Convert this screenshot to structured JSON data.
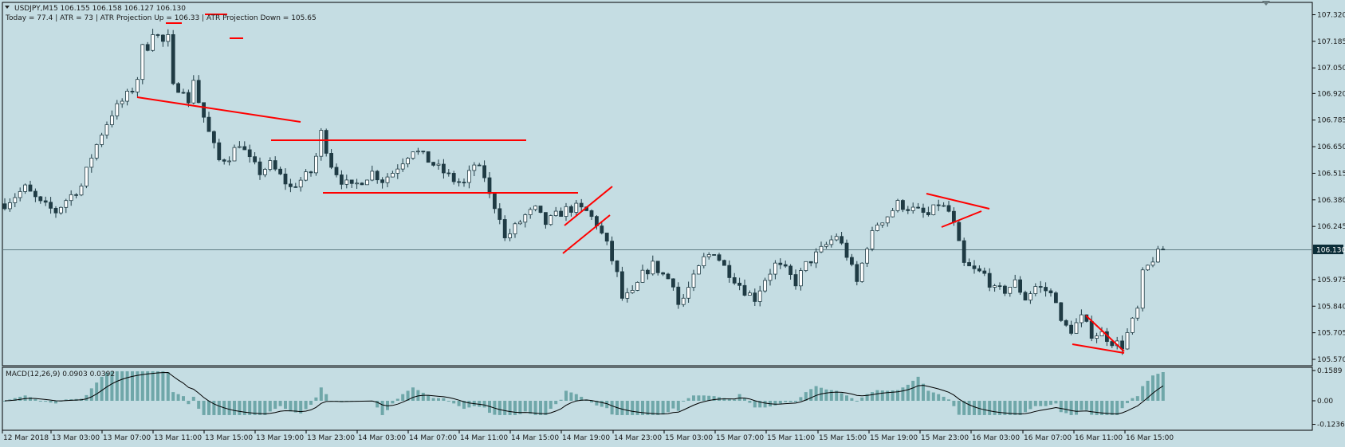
{
  "header": {
    "symbol_line": "USDJPY,M15  106.155 106.158 106.127 106.130",
    "stats_line": "Today = 77.4   |   ATR = 73   |   ATR Projection Up = 106.33   |   ATR Projection Down = 105.65"
  },
  "macd": {
    "label": "MACD(12,26,9) 0.0903 0.0392"
  },
  "colors": {
    "background": "#c5dde3",
    "candle": "#1f3b44",
    "trendline": "#ff0000",
    "macd_hist": "#6fa7a9",
    "signal": "#000000"
  },
  "chart_data": [
    {
      "type": "candlestick",
      "title": "USDJPY,M15",
      "ohlc_last": {
        "open": 106.155,
        "high": 106.158,
        "low": 106.127,
        "close": 106.13
      },
      "current_price": 106.13,
      "current_price_label": "106.130",
      "ylim": [
        105.57,
        107.37
      ],
      "y_ticks": [
        "107.320",
        "107.185",
        "107.050",
        "106.920",
        "106.785",
        "106.650",
        "106.515",
        "106.380",
        "106.245",
        "105.975",
        "105.840",
        "105.705",
        "105.570"
      ],
      "y_tick_values": [
        107.32,
        107.185,
        107.05,
        106.92,
        106.785,
        106.65,
        106.515,
        106.38,
        106.245,
        105.975,
        105.84,
        105.705,
        105.57
      ],
      "x_ticks": [
        "12 Mar 2018",
        "13 Mar 03:00",
        "13 Mar 07:00",
        "13 Mar 11:00",
        "13 Mar 15:00",
        "13 Mar 19:00",
        "13 Mar 23:00",
        "14 Mar 03:00",
        "14 Mar 07:00",
        "14 Mar 11:00",
        "14 Mar 15:00",
        "14 Mar 19:00",
        "14 Mar 23:00",
        "15 Mar 03:00",
        "15 Mar 07:00",
        "15 Mar 11:00",
        "15 Mar 15:00",
        "15 Mar 19:00",
        "15 Mar 23:00",
        "16 Mar 03:00",
        "16 Mar 07:00",
        "16 Mar 11:00",
        "16 Mar 15:00"
      ],
      "close_path": [
        [
          0,
          106.36
        ],
        [
          4,
          106.44
        ],
        [
          7,
          106.36
        ],
        [
          10,
          106.32
        ],
        [
          12,
          106.38
        ],
        [
          15,
          106.45
        ],
        [
          17,
          106.6
        ],
        [
          19,
          106.72
        ],
        [
          21,
          106.82
        ],
        [
          23,
          106.88
        ],
        [
          25,
          106.94
        ],
        [
          26,
          107.0
        ],
        [
          27,
          107.15
        ],
        [
          28,
          107.16
        ],
        [
          29,
          107.24
        ],
        [
          31,
          107.18
        ],
        [
          32,
          107.2
        ],
        [
          33,
          106.95
        ],
        [
          35,
          106.95
        ],
        [
          36,
          106.86
        ],
        [
          37,
          107.0
        ],
        [
          38,
          106.88
        ],
        [
          40,
          106.72
        ],
        [
          42,
          106.58
        ],
        [
          44,
          106.6
        ],
        [
          46,
          106.67
        ],
        [
          48,
          106.58
        ],
        [
          50,
          106.52
        ],
        [
          52,
          106.56
        ],
        [
          54,
          106.5
        ],
        [
          56,
          106.44
        ],
        [
          58,
          106.48
        ],
        [
          60,
          106.52
        ],
        [
          61,
          106.6
        ],
        [
          62,
          106.72
        ],
        [
          64,
          106.56
        ],
        [
          66,
          106.48
        ],
        [
          68,
          106.44
        ],
        [
          70,
          106.48
        ],
        [
          72,
          106.52
        ],
        [
          74,
          106.48
        ],
        [
          76,
          106.52
        ],
        [
          78,
          106.58
        ],
        [
          80,
          106.64
        ],
        [
          82,
          106.6
        ],
        [
          84,
          106.56
        ],
        [
          86,
          106.52
        ],
        [
          88,
          106.48
        ],
        [
          90,
          106.46
        ],
        [
          92,
          106.56
        ],
        [
          94,
          106.5
        ],
        [
          95,
          106.4
        ],
        [
          97,
          106.3
        ],
        [
          98,
          106.18
        ],
        [
          100,
          106.24
        ],
        [
          102,
          106.3
        ],
        [
          104,
          106.33
        ],
        [
          106,
          106.26
        ],
        [
          108,
          106.3
        ],
        [
          110,
          106.33
        ],
        [
          112,
          106.34
        ],
        [
          114,
          106.32
        ],
        [
          116,
          106.26
        ],
        [
          118,
          106.15
        ],
        [
          120,
          106.0
        ],
        [
          121,
          105.88
        ],
        [
          123,
          105.9
        ],
        [
          125,
          106.0
        ],
        [
          127,
          106.05
        ],
        [
          129,
          106.0
        ],
        [
          131,
          105.96
        ],
        [
          132,
          105.85
        ],
        [
          133,
          105.88
        ],
        [
          135,
          105.98
        ],
        [
          137,
          106.08
        ],
        [
          139,
          106.12
        ],
        [
          141,
          106.04
        ],
        [
          143,
          105.98
        ],
        [
          145,
          105.92
        ],
        [
          147,
          105.88
        ],
        [
          149,
          105.98
        ],
        [
          151,
          106.05
        ],
        [
          153,
          106.02
        ],
        [
          155,
          105.96
        ],
        [
          157,
          106.05
        ],
        [
          159,
          106.1
        ],
        [
          161,
          106.15
        ],
        [
          163,
          106.2
        ],
        [
          165,
          106.1
        ],
        [
          167,
          105.96
        ],
        [
          169,
          106.15
        ],
        [
          171,
          106.26
        ],
        [
          173,
          106.3
        ],
        [
          175,
          106.36
        ],
        [
          177,
          106.34
        ],
        [
          179,
          106.32
        ],
        [
          181,
          106.3
        ],
        [
          183,
          106.36
        ],
        [
          185,
          106.32
        ],
        [
          186,
          106.25
        ],
        [
          187,
          106.15
        ],
        [
          188,
          106.05
        ],
        [
          190,
          106.02
        ],
        [
          192,
          106.0
        ],
        [
          194,
          105.92
        ],
        [
          196,
          105.92
        ],
        [
          198,
          105.96
        ],
        [
          200,
          105.88
        ],
        [
          202,
          105.94
        ],
        [
          204,
          105.92
        ],
        [
          206,
          105.88
        ],
        [
          207,
          105.75
        ],
        [
          209,
          105.72
        ],
        [
          211,
          105.78
        ],
        [
          213,
          105.7
        ],
        [
          215,
          105.7
        ],
        [
          217,
          105.66
        ],
        [
          219,
          105.64
        ],
        [
          220,
          105.7
        ],
        [
          222,
          105.82
        ],
        [
          223,
          106.0
        ],
        [
          225,
          106.08
        ],
        [
          227,
          106.13
        ]
      ],
      "hist_extent": [
        -0.075,
        0.155
      ],
      "macd_ylim": [
        -0.1236,
        0.1589
      ],
      "macd_y_ticks": [
        "0.1589",
        "0.00",
        "-0.1236"
      ],
      "macd_y_tick_values": [
        0.1589,
        0,
        -0.1236
      ]
    }
  ]
}
